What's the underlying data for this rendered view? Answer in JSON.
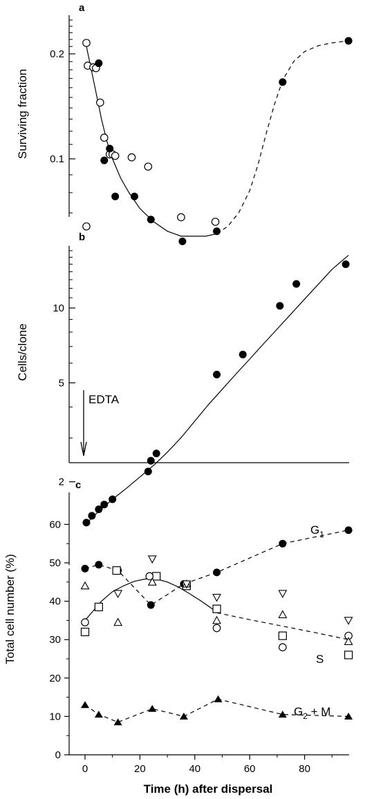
{
  "figure": {
    "x_axis_label": "Time (h) after dispersal",
    "x_ticks": [
      "0",
      "20",
      "40",
      "60",
      "80"
    ]
  },
  "chart_data": [
    {
      "panel": "a",
      "type": "scatter",
      "ylabel": "Surviving fraction",
      "y_scale": "log",
      "yticks": [
        "0.1",
        "0.2"
      ],
      "xlim": [
        -6,
        96
      ],
      "ylim": [
        0.06,
        0.3
      ],
      "series": [
        {
          "marker": "open-circle",
          "x": [
            0.5,
            1,
            3,
            4,
            5.5,
            7,
            9,
            10,
            11,
            17,
            23,
            35,
            47.5,
            0.5
          ],
          "y": [
            0.215,
            0.185,
            0.183,
            0.182,
            0.145,
            0.115,
            0.103,
            0.103,
            0.102,
            0.101,
            0.095,
            0.068,
            0.066,
            0.064
          ]
        },
        {
          "marker": "filled-circle",
          "x": [
            5,
            7,
            9,
            11,
            18,
            24,
            35.5,
            48,
            72,
            96
          ],
          "y": [
            0.188,
            0.099,
            0.107,
            0.078,
            0.078,
            0.067,
            0.058,
            0.062,
            0.166,
            0.218
          ]
        }
      ],
      "fit_curve": {
        "x": [
          0.5,
          2,
          4,
          6,
          8,
          10,
          13,
          16,
          20,
          25,
          30,
          35,
          40,
          44,
          48
        ],
        "y": [
          0.21,
          0.185,
          0.155,
          0.13,
          0.112,
          0.1,
          0.088,
          0.08,
          0.072,
          0.066,
          0.062,
          0.06,
          0.06,
          0.06,
          0.061
        ]
      },
      "dashed_curve": {
        "x": [
          48,
          52,
          56,
          60,
          63,
          66,
          69,
          72,
          76,
          80,
          85,
          90,
          96
        ],
        "y": [
          0.061,
          0.064,
          0.07,
          0.081,
          0.096,
          0.118,
          0.143,
          0.168,
          0.19,
          0.203,
          0.211,
          0.215,
          0.218
        ]
      }
    },
    {
      "panel": "b",
      "type": "scatter",
      "ylabel": "Cells/clone",
      "y_scale": "log",
      "yticks": [
        "2",
        "5",
        "10"
      ],
      "annotation": "EDTA",
      "xlim": [
        -6,
        96
      ],
      "ylim": [
        1.36,
        21
      ],
      "series": [
        {
          "marker": "filled-circle",
          "x": [
            0.5,
            2.5,
            5,
            7,
            10,
            23,
            24,
            26,
            48,
            57.5,
            71,
            77,
            95
          ],
          "y": [
            1.37,
            1.46,
            1.55,
            1.62,
            1.7,
            2.2,
            2.43,
            2.6,
            5.4,
            6.5,
            10.2,
            12.5,
            15
          ]
        }
      ],
      "fit_curve": {
        "x": [
          0.5,
          5,
          10,
          15,
          20,
          25,
          30,
          35,
          40,
          45,
          50,
          55,
          60,
          65,
          70,
          75,
          80,
          85,
          90,
          96
        ],
        "y": [
          1.36,
          1.52,
          1.7,
          1.88,
          2.09,
          2.33,
          2.63,
          3.01,
          3.51,
          4.09,
          4.71,
          5.43,
          6.23,
          7.17,
          8.23,
          9.45,
          10.85,
          12.45,
          14.3,
          16.3
        ]
      }
    },
    {
      "panel": "c",
      "type": "scatter",
      "ylabel": "Total cell number (%)",
      "yticks": [
        "0",
        "10",
        "20",
        "30",
        "40",
        "50",
        "60"
      ],
      "xlim": [
        -6,
        96
      ],
      "ylim": [
        0,
        62
      ],
      "series": [
        {
          "name": "G1",
          "marker": "filled-circle",
          "x": [
            0,
            5,
            12,
            24,
            36,
            48,
            72,
            96
          ],
          "y": [
            48.5,
            49.5,
            48,
            39,
            44.5,
            47.5,
            55,
            58.5
          ]
        },
        {
          "marker": "open-square",
          "x": [
            0,
            5,
            11.5,
            26,
            37,
            48,
            72,
            96
          ],
          "y": [
            32,
            38.5,
            48,
            46.5,
            44,
            38,
            31,
            26
          ]
        },
        {
          "marker": "open-circle",
          "x": [
            0,
            23.5,
            48,
            72,
            96
          ],
          "y": [
            34.5,
            46.5,
            33,
            28,
            31
          ]
        },
        {
          "marker": "open-triangle-up",
          "x": [
            0,
            12,
            24.5,
            37,
            48,
            72,
            96
          ],
          "y": [
            44,
            34.5,
            45,
            44.5,
            35,
            36.5,
            29.5
          ]
        },
        {
          "marker": "open-triangle-down",
          "x": [
            12,
            24.5,
            37,
            48,
            72,
            96
          ],
          "y": [
            42,
            51,
            44.5,
            41,
            42,
            35
          ]
        },
        {
          "name": "G2 + M",
          "marker": "filled-triangle-up",
          "x": [
            0,
            5,
            12,
            24.5,
            36,
            48.5,
            72,
            96
          ],
          "y": [
            13,
            10.5,
            8.5,
            12,
            10,
            14.5,
            10.5,
            10
          ]
        }
      ],
      "s_label": "S",
      "g1_label": {
        "main": "G",
        "sub": "1"
      },
      "g2m_label": {
        "main": "G",
        "sub": "2",
        "rest": " + M"
      },
      "s_fit_curve": {
        "x": [
          0,
          3,
          6,
          10,
          14,
          18,
          22,
          26,
          30,
          34,
          38,
          42,
          46,
          48
        ],
        "y": [
          35,
          37.5,
          40,
          42.5,
          44,
          45.2,
          45.8,
          45.8,
          45,
          43.7,
          42,
          40.2,
          38.2,
          37
        ]
      },
      "s_dashed_curve": {
        "x": [
          48,
          60,
          72,
          84,
          96
        ],
        "y": [
          37,
          35.2,
          33.5,
          31.8,
          30
        ]
      }
    }
  ]
}
